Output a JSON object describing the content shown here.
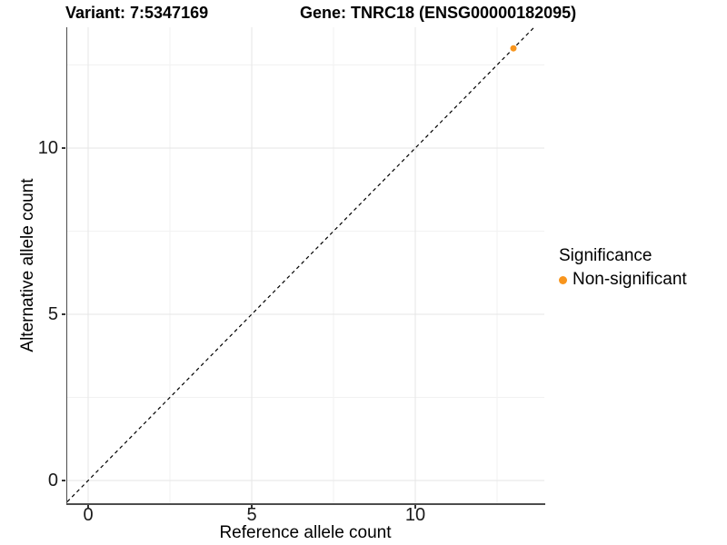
{
  "titles": {
    "variant": "Variant: 7:5347169",
    "gene": "Gene: TNRC18 (ENSG00000182095)"
  },
  "axes": {
    "x": {
      "label": "Reference allele count",
      "ticks": [
        "0",
        "5",
        "10"
      ]
    },
    "y": {
      "label": "Alternative allele count",
      "ticks": [
        "0",
        "5",
        "10"
      ]
    }
  },
  "legend": {
    "title": "Significance",
    "items": [
      {
        "label": "Non-significant",
        "color": "#F8951D",
        "marker": "circle-icon"
      }
    ]
  },
  "chart_data": {
    "type": "scatter",
    "title_left": "Variant: 7:5347169",
    "title_right": "Gene: TNRC18 (ENSG00000182095)",
    "xlabel": "Reference allele count",
    "ylabel": "Alternative allele count",
    "xlim": [
      -0.65,
      13.9
    ],
    "ylim": [
      -0.65,
      13.6
    ],
    "x_ticks": [
      0,
      5,
      10
    ],
    "y_ticks": [
      0,
      5,
      10
    ],
    "minor_ticks": [
      2.5,
      7.5,
      12.5
    ],
    "grid": "major and minor light-gray gridlines on white background",
    "legend_title": "Significance",
    "legend_position": "right",
    "series": [
      {
        "name": "Non-significant",
        "color": "#F8951D",
        "points": [
          [
            13,
            13
          ]
        ]
      }
    ],
    "reference_line": {
      "type": "identity y=x",
      "slope": 1,
      "intercept": 0,
      "style": "dashed",
      "color": "#000000"
    }
  },
  "colors": {
    "background": "#FFFFFF",
    "point_orange": "#F8951D",
    "grid_major": "#E6E6E6",
    "grid_minor": "#F2F2F2",
    "axis_line": "#4D4D4D",
    "dashed_line": "#000000",
    "text": "#000000"
  }
}
